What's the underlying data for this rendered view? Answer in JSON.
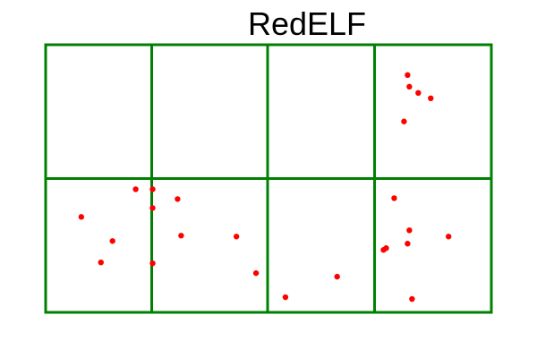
{
  "title": "RedELF",
  "colors": {
    "grid": "#008000",
    "points": "#ff0000",
    "background": "#ffffff"
  },
  "chart_data": {
    "type": "scatter",
    "title": "RedELF",
    "xlabel": "",
    "ylabel": "",
    "grid": true,
    "legend": "none",
    "xlim": [
      0,
      500
    ],
    "ylim": [
      0,
      300
    ],
    "grid_x": [
      0,
      119,
      249,
      369,
      500
    ],
    "grid_y": [
      0,
      150,
      300
    ],
    "series": [
      {
        "points": [
          [
            406,
            266
          ],
          [
            408,
            253
          ],
          [
            418,
            246
          ],
          [
            432,
            240
          ],
          [
            402,
            214
          ],
          [
            101,
            138
          ],
          [
            120,
            138
          ],
          [
            120,
            117
          ],
          [
            40,
            107
          ],
          [
            148,
            127
          ],
          [
            75,
            80
          ],
          [
            152,
            86
          ],
          [
            214,
            85
          ],
          [
            62,
            56
          ],
          [
            120,
            55
          ],
          [
            236,
            44
          ],
          [
            269,
            17
          ],
          [
            327,
            40
          ],
          [
            391,
            128
          ],
          [
            408,
            92
          ],
          [
            406,
            77
          ],
          [
            382,
            72
          ],
          [
            379,
            70
          ],
          [
            452,
            85
          ],
          [
            411,
            15
          ]
        ]
      }
    ]
  }
}
